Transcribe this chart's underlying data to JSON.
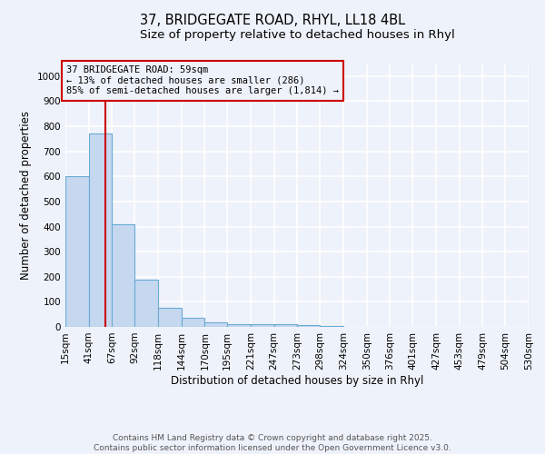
{
  "title": "37, BRIDGEGATE ROAD, RHYL, LL18 4BL",
  "subtitle": "Size of property relative to detached houses in Rhyl",
  "xlabel": "Distribution of detached houses by size in Rhyl",
  "ylabel": "Number of detached properties",
  "bar_values": [
    600,
    770,
    410,
    190,
    75,
    37,
    17,
    12,
    10,
    11,
    7,
    5,
    0,
    0,
    0,
    0,
    0,
    0,
    0,
    0
  ],
  "bin_edges": [
    15,
    41,
    67,
    92,
    118,
    144,
    170,
    195,
    221,
    247,
    273,
    298,
    324,
    350,
    376,
    401,
    427,
    453,
    479,
    504,
    530
  ],
  "bar_color": "#c5d8f0",
  "bar_edge_color": "#6aaad4",
  "vline_x": 59,
  "vline_color": "#cc0000",
  "annotation_line1": "37 BRIDGEGATE ROAD: 59sqm",
  "annotation_line2": "← 13% of detached houses are smaller (286)",
  "annotation_line3": "85% of semi-detached houses are larger (1,814) →",
  "annotation_box_color": "#cc0000",
  "ylim": [
    0,
    1050
  ],
  "yticks": [
    0,
    100,
    200,
    300,
    400,
    500,
    600,
    700,
    800,
    900,
    1000
  ],
  "background_color": "#eef2fa",
  "grid_color": "#ffffff",
  "footer_text": "Contains HM Land Registry data © Crown copyright and database right 2025.\nContains public sector information licensed under the Open Government Licence v3.0.",
  "title_fontsize": 10.5,
  "subtitle_fontsize": 9.5,
  "axis_label_fontsize": 8.5,
  "tick_fontsize": 7.5,
  "annotation_fontsize": 7.5,
  "footer_fontsize": 6.5
}
